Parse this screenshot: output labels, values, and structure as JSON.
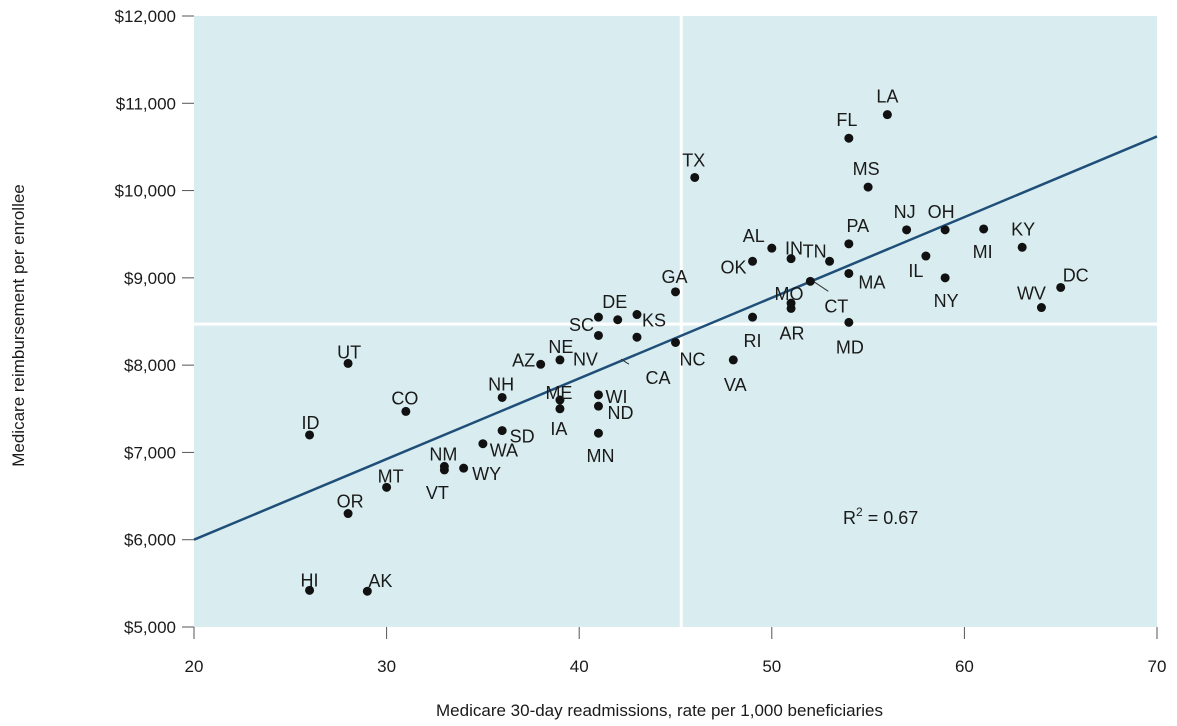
{
  "chart_data": {
    "type": "scatter",
    "xlabel": "Medicare 30-day readmissions, rate per 1,000 beneficiaries",
    "ylabel": "Medicare reimbursement per enrollee",
    "xlim": [
      20,
      70
    ],
    "ylim": [
      5000,
      12000
    ],
    "x_ticks": [
      20,
      30,
      40,
      50,
      60,
      70
    ],
    "x_tick_labels": [
      "20",
      "30",
      "40",
      "50",
      "60",
      "70"
    ],
    "y_ticks": [
      5000,
      6000,
      7000,
      8000,
      9000,
      10000,
      11000,
      12000
    ],
    "y_tick_labels": [
      "$5,000",
      "$6,000",
      "$7,000",
      "$8,000",
      "$9,000",
      "$10,000",
      "$11,000",
      "$12,000"
    ],
    "grid": false,
    "background_color": "#d9edf0",
    "point_color": "#111111",
    "trendline_color": "#1f4e79",
    "divider_color": "#ffffff",
    "divider_x": 45.3,
    "divider_y": 8470,
    "trendline": {
      "x": [
        20,
        70
      ],
      "y": [
        6000,
        10620
      ]
    },
    "r_squared_base": "R",
    "r_squared_exp": "2",
    "r_squared_value": " = 0.67",
    "points": [
      {
        "label": "LA",
        "x": 56,
        "y": 10870
      },
      {
        "label": "FL",
        "x": 54,
        "y": 10600
      },
      {
        "label": "TX",
        "x": 46,
        "y": 10150
      },
      {
        "label": "MS",
        "x": 55,
        "y": 10040
      },
      {
        "label": "NJ",
        "x": 57,
        "y": 9550
      },
      {
        "label": "OH",
        "x": 59,
        "y": 9550
      },
      {
        "label": "KY",
        "x": 63,
        "y": 9350
      },
      {
        "label": "MI",
        "x": 61,
        "y": 9560
      },
      {
        "label": "PA",
        "x": 54,
        "y": 9390
      },
      {
        "label": "AL",
        "x": 50,
        "y": 9340
      },
      {
        "label": "IN",
        "x": 51,
        "y": 9220
      },
      {
        "label": "TN",
        "x": 53,
        "y": 9190
      },
      {
        "label": "OK",
        "x": 49,
        "y": 9190
      },
      {
        "label": "IL",
        "x": 58,
        "y": 9250
      },
      {
        "label": "DC",
        "x": 65,
        "y": 8890
      },
      {
        "label": "GA",
        "x": 45,
        "y": 8840
      },
      {
        "label": "MA",
        "x": 54,
        "y": 9050
      },
      {
        "label": "NY",
        "x": 59,
        "y": 9000
      },
      {
        "label": "MO",
        "x": 51,
        "y": 8710
      },
      {
        "label": "CT",
        "x": 52,
        "y": 8960
      },
      {
        "label": "WV",
        "x": 64,
        "y": 8660
      },
      {
        "label": "AR",
        "x": 51,
        "y": 8650
      },
      {
        "label": "DE",
        "x": 42,
        "y": 8520
      },
      {
        "label": "KS",
        "x": 43,
        "y": 8580
      },
      {
        "label": "SC",
        "x": 41,
        "y": 8550
      },
      {
        "label": "RI",
        "x": 49,
        "y": 8550
      },
      {
        "label": "MD",
        "x": 54,
        "y": 8490
      },
      {
        "label": "NV",
        "x": 41,
        "y": 8340
      },
      {
        "label": "CA",
        "x": 43,
        "y": 8320
      },
      {
        "label": "NC",
        "x": 45,
        "y": 8260
      },
      {
        "label": "NE",
        "x": 39,
        "y": 8060
      },
      {
        "label": "AZ",
        "x": 38,
        "y": 8010
      },
      {
        "label": "UT",
        "x": 28,
        "y": 8020
      },
      {
        "label": "VA",
        "x": 48,
        "y": 8060
      },
      {
        "label": "NH",
        "x": 36,
        "y": 7630
      },
      {
        "label": "ME",
        "x": 39,
        "y": 7600
      },
      {
        "label": "WI",
        "x": 41,
        "y": 7660
      },
      {
        "label": "CO",
        "x": 31,
        "y": 7470
      },
      {
        "label": "ND",
        "x": 41,
        "y": 7530
      },
      {
        "label": "IA",
        "x": 39,
        "y": 7500
      },
      {
        "label": "SD",
        "x": 36,
        "y": 7250
      },
      {
        "label": "ID",
        "x": 26,
        "y": 7200
      },
      {
        "label": "MN",
        "x": 41,
        "y": 7220
      },
      {
        "label": "WA",
        "x": 35,
        "y": 7100
      },
      {
        "label": "NM",
        "x": 33,
        "y": 6840
      },
      {
        "label": "VT",
        "x": 33,
        "y": 6800
      },
      {
        "label": "WY",
        "x": 34,
        "y": 6820
      },
      {
        "label": "MT",
        "x": 30,
        "y": 6600
      },
      {
        "label": "OR",
        "x": 28,
        "y": 6300
      },
      {
        "label": "HI",
        "x": 26,
        "y": 5420
      },
      {
        "label": "AK",
        "x": 29,
        "y": 5410
      }
    ]
  }
}
